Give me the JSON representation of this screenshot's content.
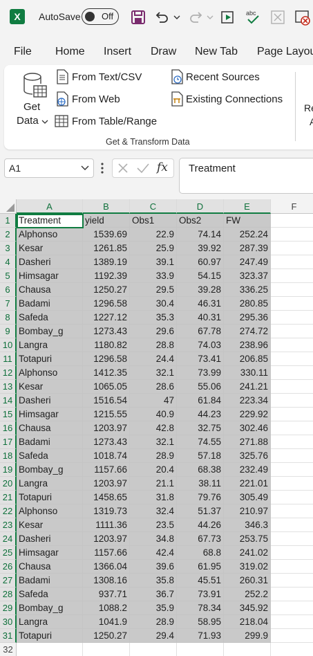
{
  "titlebar": {
    "app_logo": "X",
    "autosave_label": "AutoSave",
    "autosave_state": "Off",
    "icons": [
      "save-icon",
      "undo-icon",
      "redo-icon",
      "play-icon",
      "spelling-icon",
      "close-box-icon",
      "cancel-icon"
    ]
  },
  "menu": {
    "tabs": [
      "File",
      "Home",
      "Insert",
      "Draw",
      "New Tab",
      "Page Layou"
    ]
  },
  "ribbon": {
    "get_data_line1": "Get",
    "get_data_line2": "Data",
    "from_text_csv": "From Text/CSV",
    "from_web": "From Web",
    "from_table_range": "From Table/Range",
    "recent_sources": "Recent Sources",
    "existing_connections": "Existing Connections",
    "cut_off_label_1": "Re",
    "cut_off_label_2": "A",
    "group_label": "Get & Transform Data"
  },
  "formula_bar": {
    "name_box": "A1",
    "fx": "fx",
    "value": "Treatment"
  },
  "sheet": {
    "columns": [
      "A",
      "B",
      "C",
      "D",
      "E",
      "F"
    ],
    "rows": [
      [
        "Treatment",
        "yield",
        "Obs1",
        "Obs2",
        "FW"
      ],
      [
        "Alphonso",
        "1539.69",
        "22.9",
        "74.14",
        "252.24"
      ],
      [
        "Kesar",
        "1261.85",
        "25.9",
        "39.92",
        "287.39"
      ],
      [
        "Dasheri",
        "1389.19",
        "39.1",
        "60.97",
        "247.49"
      ],
      [
        "Himsagar",
        "1192.39",
        "33.9",
        "54.15",
        "323.37"
      ],
      [
        "Chausa",
        "1250.27",
        "29.5",
        "39.28",
        "336.25"
      ],
      [
        "Badami",
        "1296.58",
        "30.4",
        "46.31",
        "280.85"
      ],
      [
        "Safeda",
        "1227.12",
        "35.3",
        "40.31",
        "295.36"
      ],
      [
        "Bombay_g",
        "1273.43",
        "29.6",
        "67.78",
        "274.72"
      ],
      [
        "Langra",
        "1180.82",
        "28.8",
        "74.03",
        "238.96"
      ],
      [
        "Totapuri",
        "1296.58",
        "24.4",
        "73.41",
        "206.85"
      ],
      [
        "Alphonso",
        "1412.35",
        "32.1",
        "73.99",
        "330.11"
      ],
      [
        "Kesar",
        "1065.05",
        "28.6",
        "55.06",
        "241.21"
      ],
      [
        "Dasheri",
        "1516.54",
        "47",
        "61.84",
        "223.34"
      ],
      [
        "Himsagar",
        "1215.55",
        "40.9",
        "44.23",
        "229.92"
      ],
      [
        "Chausa",
        "1203.97",
        "42.8",
        "32.75",
        "302.46"
      ],
      [
        "Badami",
        "1273.43",
        "32.1",
        "74.55",
        "271.88"
      ],
      [
        "Safeda",
        "1018.74",
        "28.9",
        "57.18",
        "325.76"
      ],
      [
        "Bombay_g",
        "1157.66",
        "20.4",
        "68.38",
        "232.49"
      ],
      [
        "Langra",
        "1203.97",
        "21.1",
        "38.11",
        "221.01"
      ],
      [
        "Totapuri",
        "1458.65",
        "31.8",
        "79.76",
        "305.49"
      ],
      [
        "Alphonso",
        "1319.73",
        "32.4",
        "51.37",
        "210.97"
      ],
      [
        "Kesar",
        "1111.36",
        "23.5",
        "44.26",
        "346.3"
      ],
      [
        "Dasheri",
        "1203.97",
        "34.8",
        "67.73",
        "253.75"
      ],
      [
        "Himsagar",
        "1157.66",
        "42.4",
        "68.8",
        "241.02"
      ],
      [
        "Chausa",
        "1366.04",
        "39.6",
        "61.95",
        "319.02"
      ],
      [
        "Badami",
        "1308.16",
        "35.8",
        "45.51",
        "260.31"
      ],
      [
        "Safeda",
        "937.71",
        "36.7",
        "73.91",
        "252.2"
      ],
      [
        "Bombay_g",
        "1088.2",
        "35.9",
        "78.34",
        "345.92"
      ],
      [
        "Langra",
        "1041.9",
        "28.9",
        "58.95",
        "218.04"
      ],
      [
        "Totapuri",
        "1250.27",
        "29.4",
        "71.93",
        "299.9"
      ]
    ],
    "trailing_row_numbers": [
      "32"
    ]
  }
}
